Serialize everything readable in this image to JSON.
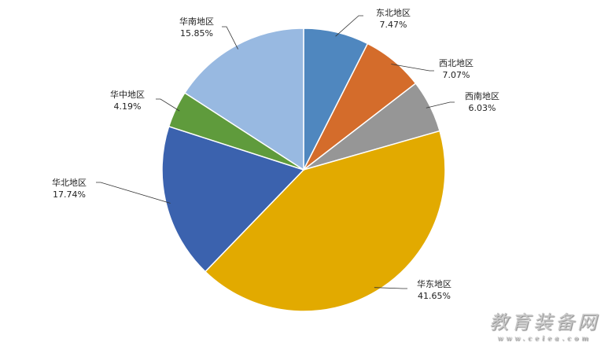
{
  "chart_data": {
    "type": "pie",
    "start_angle": "top",
    "direction": "clockwise",
    "slices": [
      {
        "label": "东北地区",
        "value": 7.47,
        "display": "7.47%",
        "color": "#4F87BF"
      },
      {
        "label": "西北地区",
        "value": 7.07,
        "display": "7.07%",
        "color": "#D46C2B"
      },
      {
        "label": "西南地区",
        "value": 6.03,
        "display": "6.03%",
        "color": "#969696"
      },
      {
        "label": "华东地区",
        "value": 41.65,
        "display": "41.65%",
        "color": "#E2AA00"
      },
      {
        "label": "华北地区",
        "value": 17.74,
        "display": "17.74%",
        "color": "#3B62AE"
      },
      {
        "label": "华中地区",
        "value": 4.19,
        "display": "4.19%",
        "color": "#5F9B3C"
      },
      {
        "label": "华南地区",
        "value": 15.85,
        "display": "15.85%",
        "color": "#98B9E1"
      }
    ],
    "legend": "none"
  },
  "watermark": {
    "title": "教育装备网",
    "url": "www.ceiea.com"
  }
}
